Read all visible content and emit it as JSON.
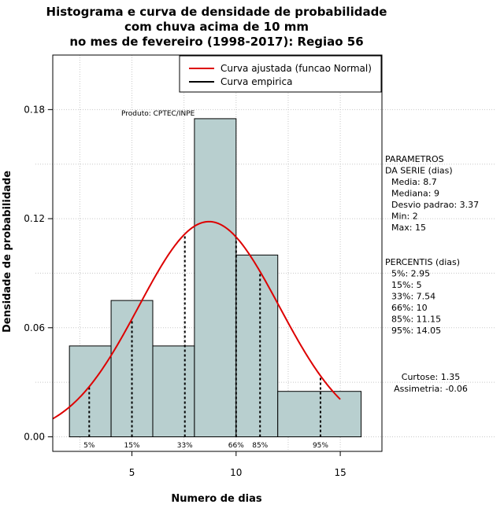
{
  "chart_data": {
    "type": "bar",
    "title_lines": [
      "Histograma e curva de densidade de probabilidade",
      "com chuva acima de 10 mm",
      "no mes de fevereiro (1998-2017): Regiao 56"
    ],
    "xlabel": "Numero de dias",
    "ylabel": "Densidade de probabilidade",
    "xlim": [
      1.2,
      17.0
    ],
    "ylim": [
      -0.008,
      0.21
    ],
    "x_ticks": [
      5,
      10,
      15
    ],
    "y_ticks": [
      0.0,
      0.06,
      0.12,
      0.18
    ],
    "y_tick_labels": [
      "0.00",
      "0.06",
      "0.12",
      "0.18"
    ],
    "grid": true,
    "bars": [
      {
        "x0": 2,
        "x1": 4,
        "value": 0.05
      },
      {
        "x0": 4,
        "x1": 6,
        "value": 0.075
      },
      {
        "x0": 6,
        "x1": 8,
        "value": 0.05
      },
      {
        "x0": 8,
        "x1": 10,
        "value": 0.175
      },
      {
        "x0": 10,
        "x1": 12,
        "value": 0.1
      },
      {
        "x0": 12,
        "x1": 16,
        "value": 0.025
      }
    ],
    "bar_color": "#b8cfcf",
    "normal_fit": {
      "mean": 8.7,
      "sd": 3.37,
      "color": "#dd0000"
    },
    "percentile_lines": [
      {
        "label": "5%",
        "x": 2.95
      },
      {
        "label": "15%",
        "x": 5
      },
      {
        "label": "33%",
        "x": 7.54
      },
      {
        "label": "66%",
        "x": 10
      },
      {
        "label": "85%",
        "x": 11.15
      },
      {
        "label": "95%",
        "x": 14.05
      }
    ],
    "legend": {
      "position": "top-right",
      "items": [
        {
          "label": "Curva ajustada (funcao Normal)",
          "color": "#dd0000"
        },
        {
          "label": "Curva empirica",
          "color": "#000000"
        }
      ]
    },
    "annotation": "Produto: CPTEC/INPE"
  },
  "side_panel": {
    "params_lines": [
      "PARAMETROS",
      "DA SERIE (dias)",
      "Media: 8.7",
      "Mediana: 9",
      "Desvio padrao: 3.37",
      "Min: 2",
      "Max: 15"
    ],
    "percentis_lines": [
      "PERCENTIS (dias)",
      "5%: 2.95",
      "15%: 5",
      "33%: 7.54",
      "66%: 10",
      "85%: 11.15",
      "95%: 14.05"
    ],
    "shape_lines": [
      "Curtose: 1.35",
      "Assimetria: -0.06"
    ]
  }
}
